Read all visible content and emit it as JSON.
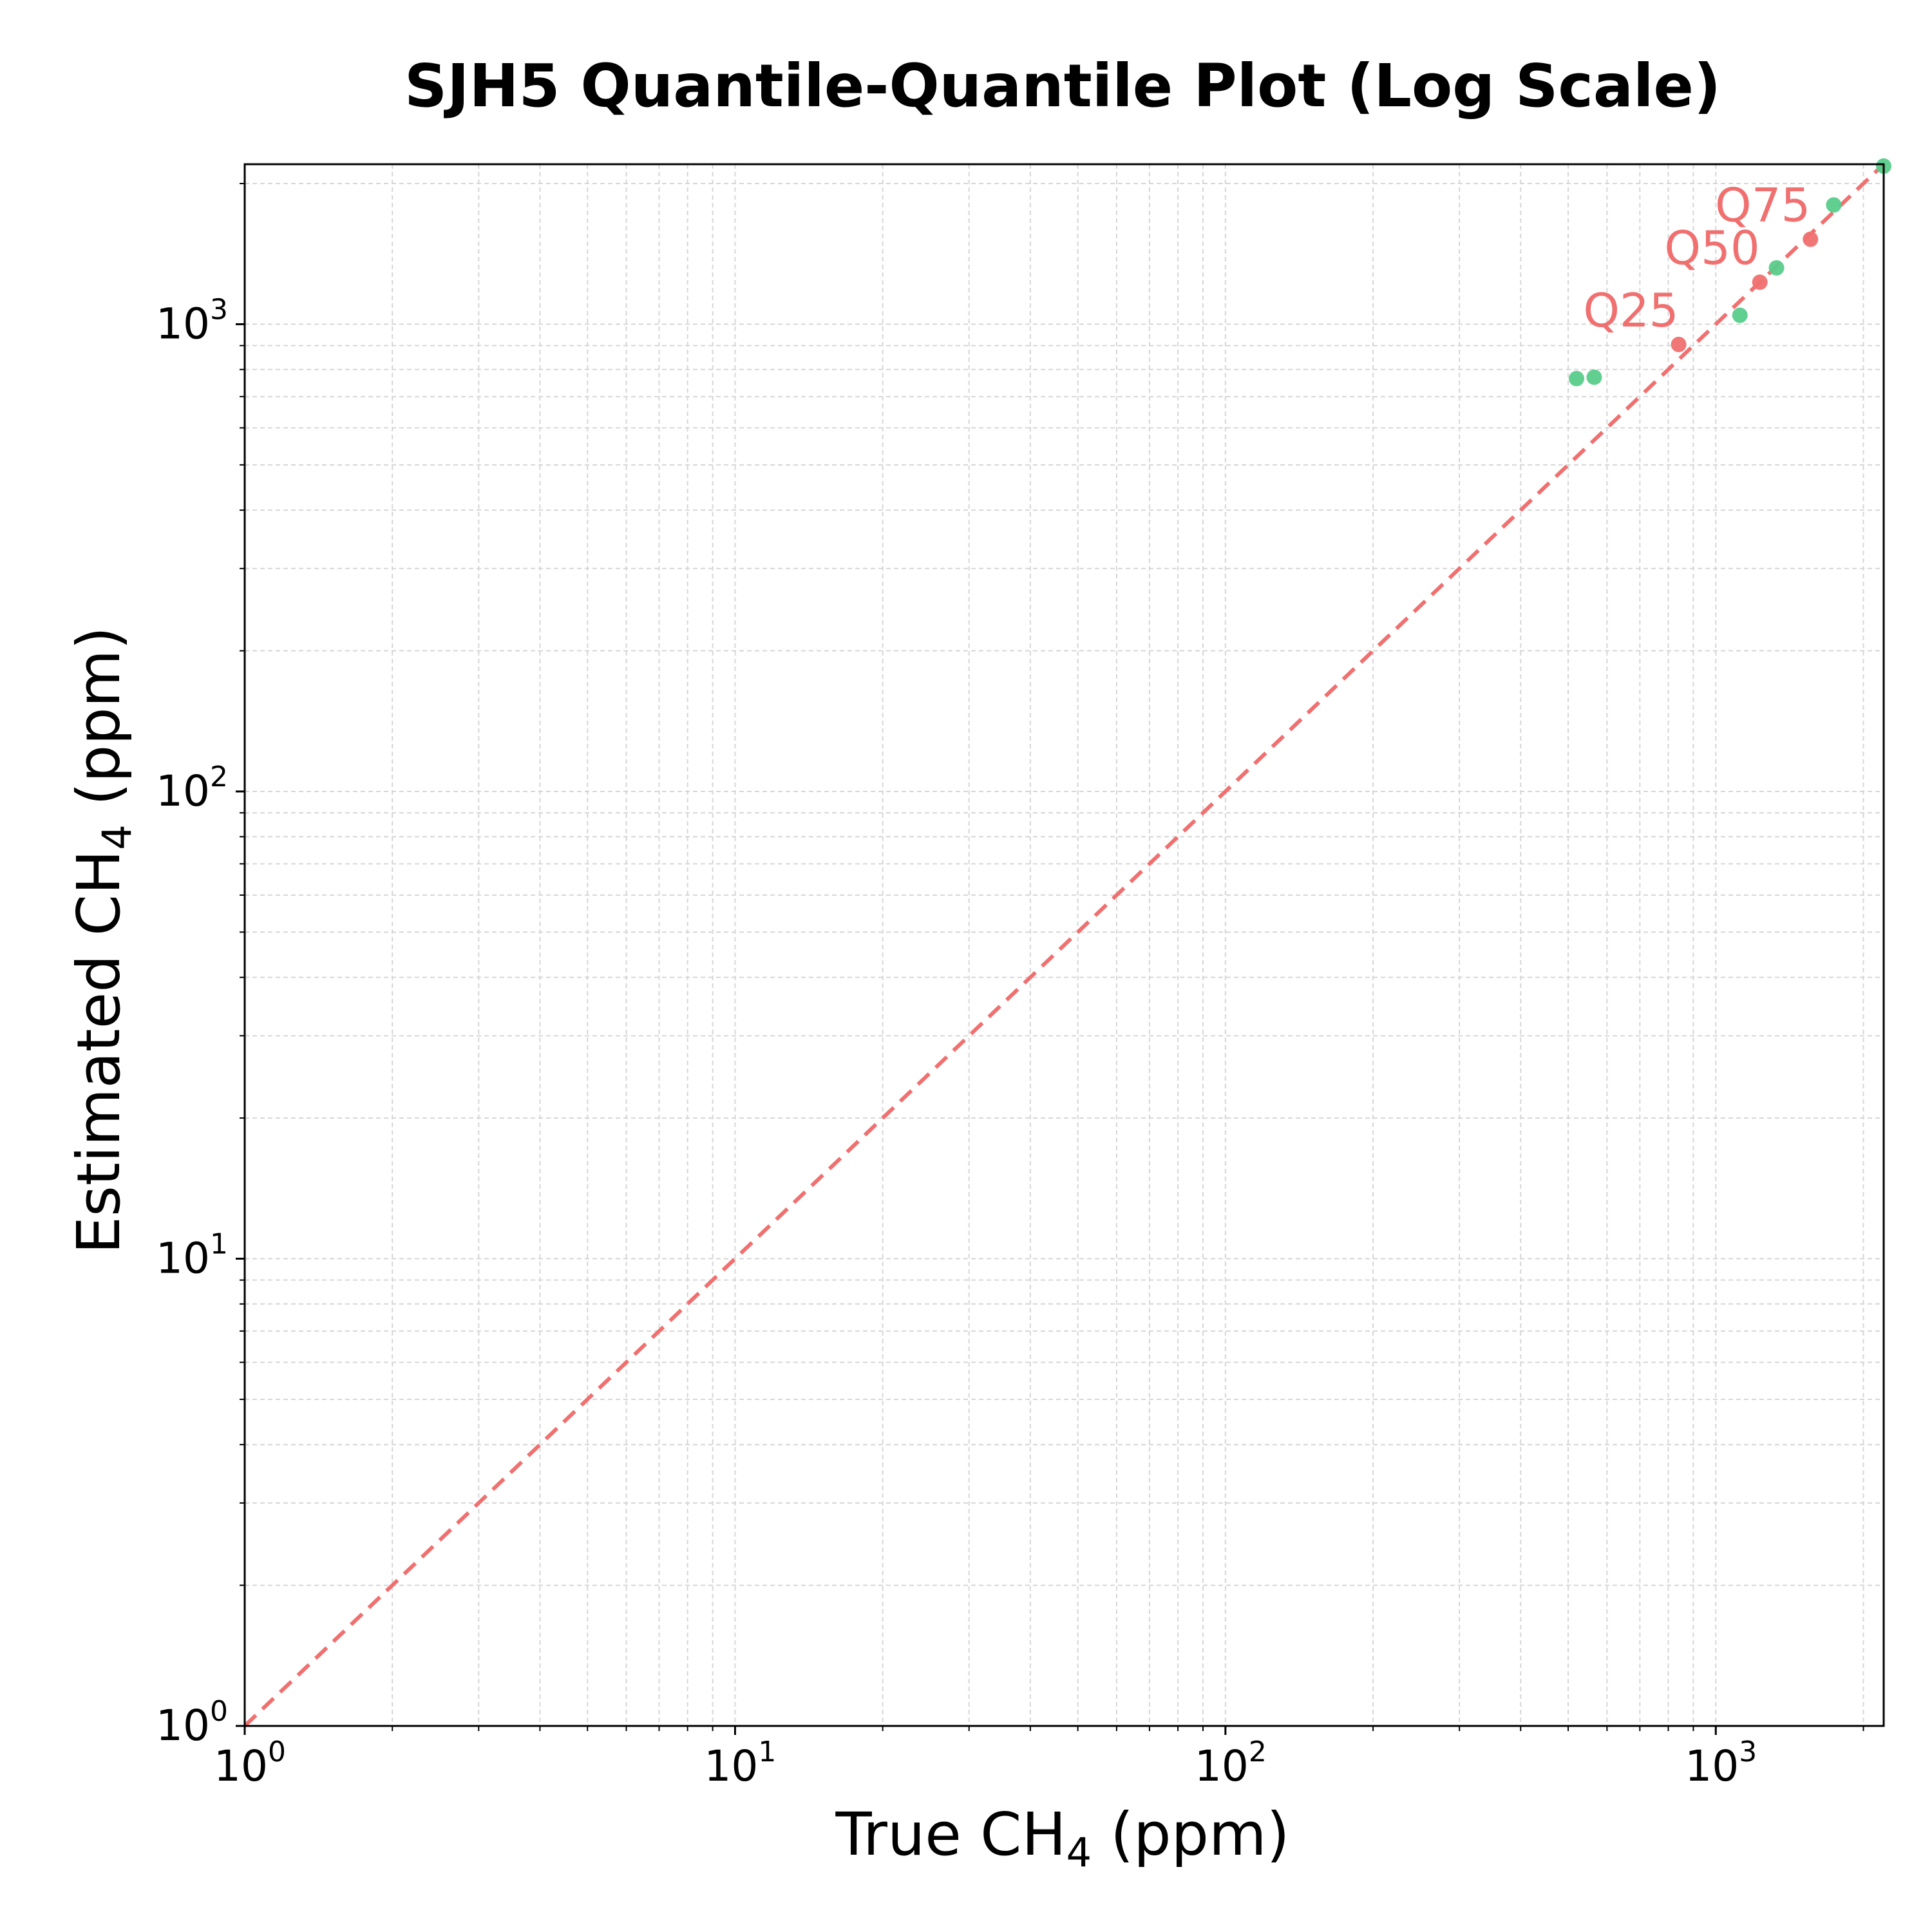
{
  "chart_data": {
    "type": "scatter",
    "title": "SJH5 Quantile-Quantile Plot (Log Scale)",
    "xlabel": {
      "main": "True CH",
      "sub": "4",
      "suffix": " (ppm)"
    },
    "ylabel": {
      "main": "Estimated CH",
      "sub": "4",
      "suffix": " (ppm)"
    },
    "x_scale": "log",
    "y_scale": "log",
    "xlim": [
      1,
      2200
    ],
    "ylim": [
      1,
      2200
    ],
    "x_ticks": [
      {
        "value": 1,
        "base": "10",
        "exp": "0"
      },
      {
        "value": 10,
        "base": "10",
        "exp": "1"
      },
      {
        "value": 100,
        "base": "10",
        "exp": "2"
      },
      {
        "value": 1000,
        "base": "10",
        "exp": "3"
      }
    ],
    "y_ticks": [
      {
        "value": 1,
        "base": "10",
        "exp": "0"
      },
      {
        "value": 10,
        "base": "10",
        "exp": "1"
      },
      {
        "value": 100,
        "base": "10",
        "exp": "2"
      },
      {
        "value": 1000,
        "base": "10",
        "exp": "3"
      }
    ],
    "grid": true,
    "reference_line": {
      "x": [
        1,
        2200
      ],
      "y": [
        1,
        2200
      ],
      "style": "dashed",
      "color": "#f07070"
    },
    "series": [
      {
        "color": "#58cc8a",
        "points": [
          {
            "x": 520,
            "y": 765
          },
          {
            "x": 565,
            "y": 770
          },
          {
            "x": 1120,
            "y": 1045
          },
          {
            "x": 1330,
            "y": 1320
          },
          {
            "x": 1740,
            "y": 1800
          },
          {
            "x": 2200,
            "y": 2180
          }
        ]
      },
      {
        "color": "#f07070",
        "points": [
          {
            "x": 840,
            "y": 905,
            "label": "Q25"
          },
          {
            "x": 1230,
            "y": 1230,
            "label": "Q50"
          },
          {
            "x": 1560,
            "y": 1520,
            "label": "Q75"
          }
        ]
      }
    ]
  }
}
